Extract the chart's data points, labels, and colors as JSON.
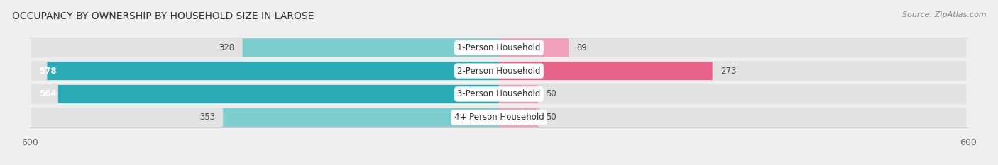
{
  "title": "OCCUPANCY BY OWNERSHIP BY HOUSEHOLD SIZE IN LAROSE",
  "source": "Source: ZipAtlas.com",
  "categories": [
    "1-Person Household",
    "2-Person Household",
    "3-Person Household",
    "4+ Person Household"
  ],
  "owner_values": [
    328,
    578,
    564,
    353
  ],
  "renter_values": [
    89,
    273,
    50,
    50
  ],
  "owner_color_dark": "#2AACB8",
  "owner_color_light": "#7DCFCF",
  "renter_color_dark": "#E8638A",
  "renter_color_light": "#F2A0BB",
  "axis_max": 600,
  "bg_color": "#EFEFEF",
  "row_bg_color": "#E2E2E2",
  "label_bg_color": "#FFFFFF",
  "title_fontsize": 10,
  "source_fontsize": 8,
  "tick_fontsize": 9,
  "bar_label_fontsize": 8.5,
  "cat_label_fontsize": 8.5,
  "legend_fontsize": 9
}
